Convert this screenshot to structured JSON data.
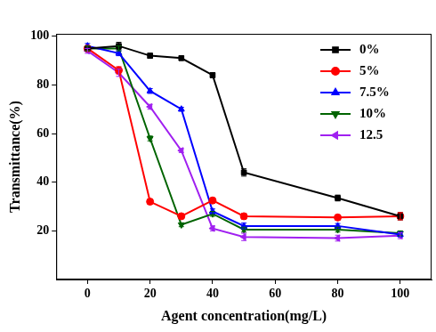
{
  "chart_data": {
    "type": "line",
    "x_label": "Agent concentration(mg/L)",
    "y_label": "Transmittance(%)",
    "x": [
      0,
      10,
      20,
      30,
      40,
      50,
      80,
      100
    ],
    "xlim": [
      -10,
      110
    ],
    "xticks": [
      0,
      20,
      40,
      60,
      80,
      100
    ],
    "ylim": [
      0,
      101
    ],
    "yticks": [
      20,
      40,
      60,
      80,
      100
    ],
    "grid": false,
    "legend": "upper right",
    "series": [
      {
        "name": "0%",
        "color": "#000000",
        "marker": "square",
        "values": [
          95,
          96,
          92,
          91,
          84,
          44,
          33.5,
          26
        ],
        "errors": [
          1,
          1.5,
          1,
          0.8,
          1,
          1.5,
          1.2,
          1.5
        ]
      },
      {
        "name": "5%",
        "color": "#ff0000",
        "marker": "circle",
        "values": [
          95,
          86,
          32,
          26,
          32.5,
          26,
          25.5,
          26
        ],
        "errors": [
          1,
          1.5,
          1,
          0.8,
          1,
          1.2,
          1,
          1.5
        ]
      },
      {
        "name": "7.5%",
        "color": "#0000ff",
        "marker": "triangle-up",
        "values": [
          96,
          93,
          77.5,
          70,
          28,
          22,
          22,
          18.5
        ],
        "errors": [
          1,
          1,
          1,
          0.8,
          1,
          1.2,
          1,
          1
        ]
      },
      {
        "name": "10%",
        "color": "#006400",
        "marker": "triangle-down",
        "values": [
          95,
          95,
          58,
          22.5,
          27,
          20.5,
          20.5,
          19
        ],
        "errors": [
          1,
          1,
          1,
          0.8,
          1,
          1,
          1,
          1
        ]
      },
      {
        "name": "12.5",
        "color": "#a020f0",
        "marker": "triangle-left",
        "values": [
          94,
          85,
          71,
          53,
          21,
          17.5,
          17,
          18
        ],
        "errors": [
          1,
          1.5,
          1,
          0.8,
          1,
          1.5,
          1.2,
          1.2
        ]
      }
    ]
  }
}
